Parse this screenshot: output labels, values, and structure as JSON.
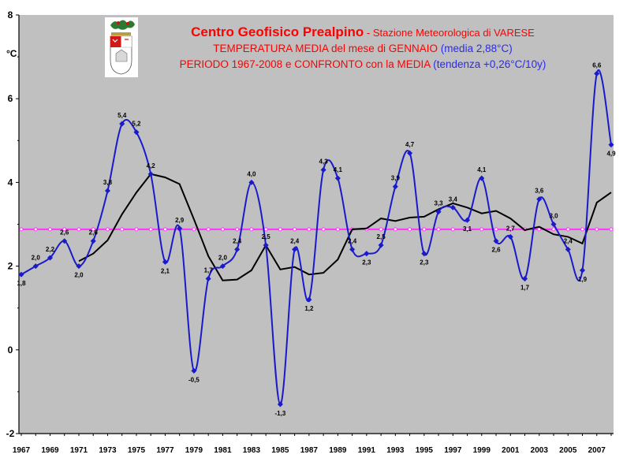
{
  "chart_data": {
    "type": "line",
    "title_line1_bold": "Centro Geofisico Prealpino",
    "title_line1_rest": " - Stazione Meteorologica di VARESE",
    "title_line2_main": "TEMPERATURA MEDIA del mese di GENNAIO ",
    "title_line2_paren": "(media 2,88°C)",
    "title_line3_main": "PERIODO 1967-2008 e CONFRONTO con la MEDIA ",
    "title_line3_paren": "(tendenza +0,26°C/10y)",
    "ylabel": "°C",
    "ylim": [
      -2,
      8
    ],
    "yticks": [
      "-2",
      "0",
      "2",
      "4",
      "6",
      "8"
    ],
    "xlim": [
      1967,
      2008
    ],
    "xticks": [
      "1967",
      "1969",
      "1971",
      "1973",
      "1975",
      "1977",
      "1979",
      "1981",
      "1983",
      "1985",
      "1987",
      "1989",
      "1991",
      "1993",
      "1995",
      "1997",
      "1999",
      "2001",
      "2003",
      "2005",
      "2007"
    ],
    "grid": false,
    "mean_value": 2.88,
    "x": [
      1967,
      1968,
      1969,
      1970,
      1971,
      1972,
      1973,
      1974,
      1975,
      1976,
      1977,
      1978,
      1979,
      1980,
      1981,
      1982,
      1983,
      1984,
      1985,
      1986,
      1987,
      1988,
      1989,
      1990,
      1991,
      1992,
      1993,
      1994,
      1995,
      1996,
      1997,
      1998,
      1999,
      2000,
      2001,
      2002,
      2003,
      2004,
      2005,
      2006,
      2007,
      2008
    ],
    "series": [
      {
        "values": [
          1.8,
          2.0,
          2.2,
          2.6,
          2.0,
          2.6,
          3.8,
          5.4,
          5.2,
          4.2,
          2.1,
          2.9,
          -0.5,
          1.7,
          2.0,
          2.4,
          4.0,
          2.5,
          -1.3,
          2.4,
          1.2,
          4.3,
          4.1,
          2.4,
          2.3,
          2.5,
          3.9,
          4.7,
          2.3,
          3.3,
          3.4,
          3.1,
          4.1,
          2.6,
          2.7,
          1.7,
          3.6,
          3.0,
          2.4,
          1.9,
          6.6,
          4.9
        ],
        "labels": [
          "1,8",
          "2,0",
          "2,2",
          "2,6",
          "2,0",
          "2,6",
          "3,8",
          "5,4",
          "5,2",
          "4,2",
          "2,1",
          "2,9",
          "-0,5",
          "1,7",
          "2,0",
          "2,4",
          "4,0",
          "2,5",
          "-1,3",
          "2,4",
          "1,2",
          "4,3",
          "4,1",
          "2,4",
          "2,3",
          "2,5",
          "3,9",
          "4,7",
          "2,3",
          "3,3",
          "3,4",
          "3,1",
          "4,1",
          "2,6",
          "2,7",
          "1,7",
          "3,6",
          "3,0",
          "2,4",
          "1,9",
          "6,6",
          "4,9"
        ]
      },
      {
        "x": [
          1971,
          1972,
          1973,
          1974,
          1975,
          1976,
          1977,
          1978,
          1979,
          1980,
          1981,
          1982,
          1983,
          1984,
          1985,
          1986,
          1987,
          1988,
          1989,
          1990,
          1991,
          1992,
          1993,
          1994,
          1995,
          1996,
          1997,
          1998,
          1999,
          2000,
          2001,
          2002,
          2003,
          2004,
          2005,
          2006,
          2007,
          2008
        ],
        "values": [
          2.12,
          2.3,
          2.62,
          3.24,
          3.76,
          4.2,
          4.12,
          3.96,
          3.12,
          2.24,
          1.66,
          1.68,
          1.9,
          2.5,
          1.92,
          1.98,
          1.8,
          1.84,
          2.16,
          2.88,
          2.9,
          3.14,
          3.08,
          3.16,
          3.18,
          3.36,
          3.5,
          3.4,
          3.26,
          3.32,
          3.14,
          2.86,
          2.94,
          2.76,
          2.7,
          2.54,
          3.52,
          3.76
        ]
      },
      {
        "x": [
          1967,
          2008
        ],
        "values": [
          2.88,
          2.88
        ]
      }
    ],
    "colors": {
      "temperature": "#1a1acc",
      "moving_average": "#000000",
      "mean": "#ff33ff",
      "plot_bg": "#c0c0c0",
      "title_red": "#ff0000",
      "title_blue": "#2a2aee"
    }
  },
  "logo": {
    "name": "coat-of-arms"
  }
}
